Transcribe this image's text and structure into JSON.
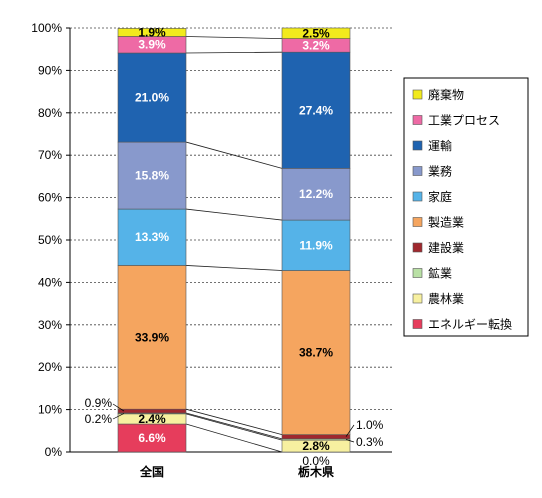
{
  "chart_data": {
    "type": "bar",
    "stacked": true,
    "orientation": "vertical",
    "categories": [
      "全国",
      "栃木県"
    ],
    "ylim": [
      0,
      100
    ],
    "yticks": [
      "0%",
      "10%",
      "20%",
      "30%",
      "40%",
      "50%",
      "60%",
      "70%",
      "80%",
      "90%",
      "100%"
    ],
    "grid": "dotted horizontal",
    "legend_position": "right",
    "series": [
      {
        "name": "エネルギー転換",
        "color": "#e63d5c",
        "values": [
          6.6,
          0.0
        ],
        "labels": [
          "6.6%",
          "0.0%"
        ]
      },
      {
        "name": "農林業",
        "color": "#f7f0a0",
        "values": [
          2.4,
          2.8
        ],
        "labels": [
          "2.4%",
          "2.8%"
        ]
      },
      {
        "name": "鉱業",
        "color": "#b9e0a5",
        "values": [
          0.2,
          0.3
        ],
        "labels": [
          "0.2%",
          "0.3%"
        ]
      },
      {
        "name": "建設業",
        "color": "#a0282e",
        "values": [
          0.9,
          1.0
        ],
        "labels": [
          "0.9%",
          "1.0%"
        ]
      },
      {
        "name": "製造業",
        "color": "#f5a55f",
        "values": [
          33.9,
          38.7
        ],
        "labels": [
          "33.9%",
          "38.7%"
        ]
      },
      {
        "name": "家庭",
        "color": "#55b3e8",
        "values": [
          13.3,
          11.9
        ],
        "labels": [
          "13.3%",
          "11.9%"
        ]
      },
      {
        "name": "業務",
        "color": "#8899cc",
        "values": [
          15.8,
          12.2
        ],
        "labels": [
          "15.8%",
          "12.2%"
        ]
      },
      {
        "name": "運輸",
        "color": "#1f63b0",
        "values": [
          21.0,
          27.4
        ],
        "labels": [
          "21.0%",
          "27.4%"
        ]
      },
      {
        "name": "工業プロセス",
        "color": "#ee6aa5",
        "values": [
          3.9,
          3.2
        ],
        "labels": [
          "3.9%",
          "3.2%"
        ]
      },
      {
        "name": "廃棄物",
        "color": "#f2ea1d",
        "values": [
          1.9,
          2.5
        ],
        "labels": [
          "1.9%",
          "2.5%"
        ]
      }
    ],
    "legend_order": [
      "廃棄物",
      "工業プロセス",
      "運輸",
      "業務",
      "家庭",
      "製造業",
      "建設業",
      "鉱業",
      "農林業",
      "エネルギー転換"
    ]
  }
}
